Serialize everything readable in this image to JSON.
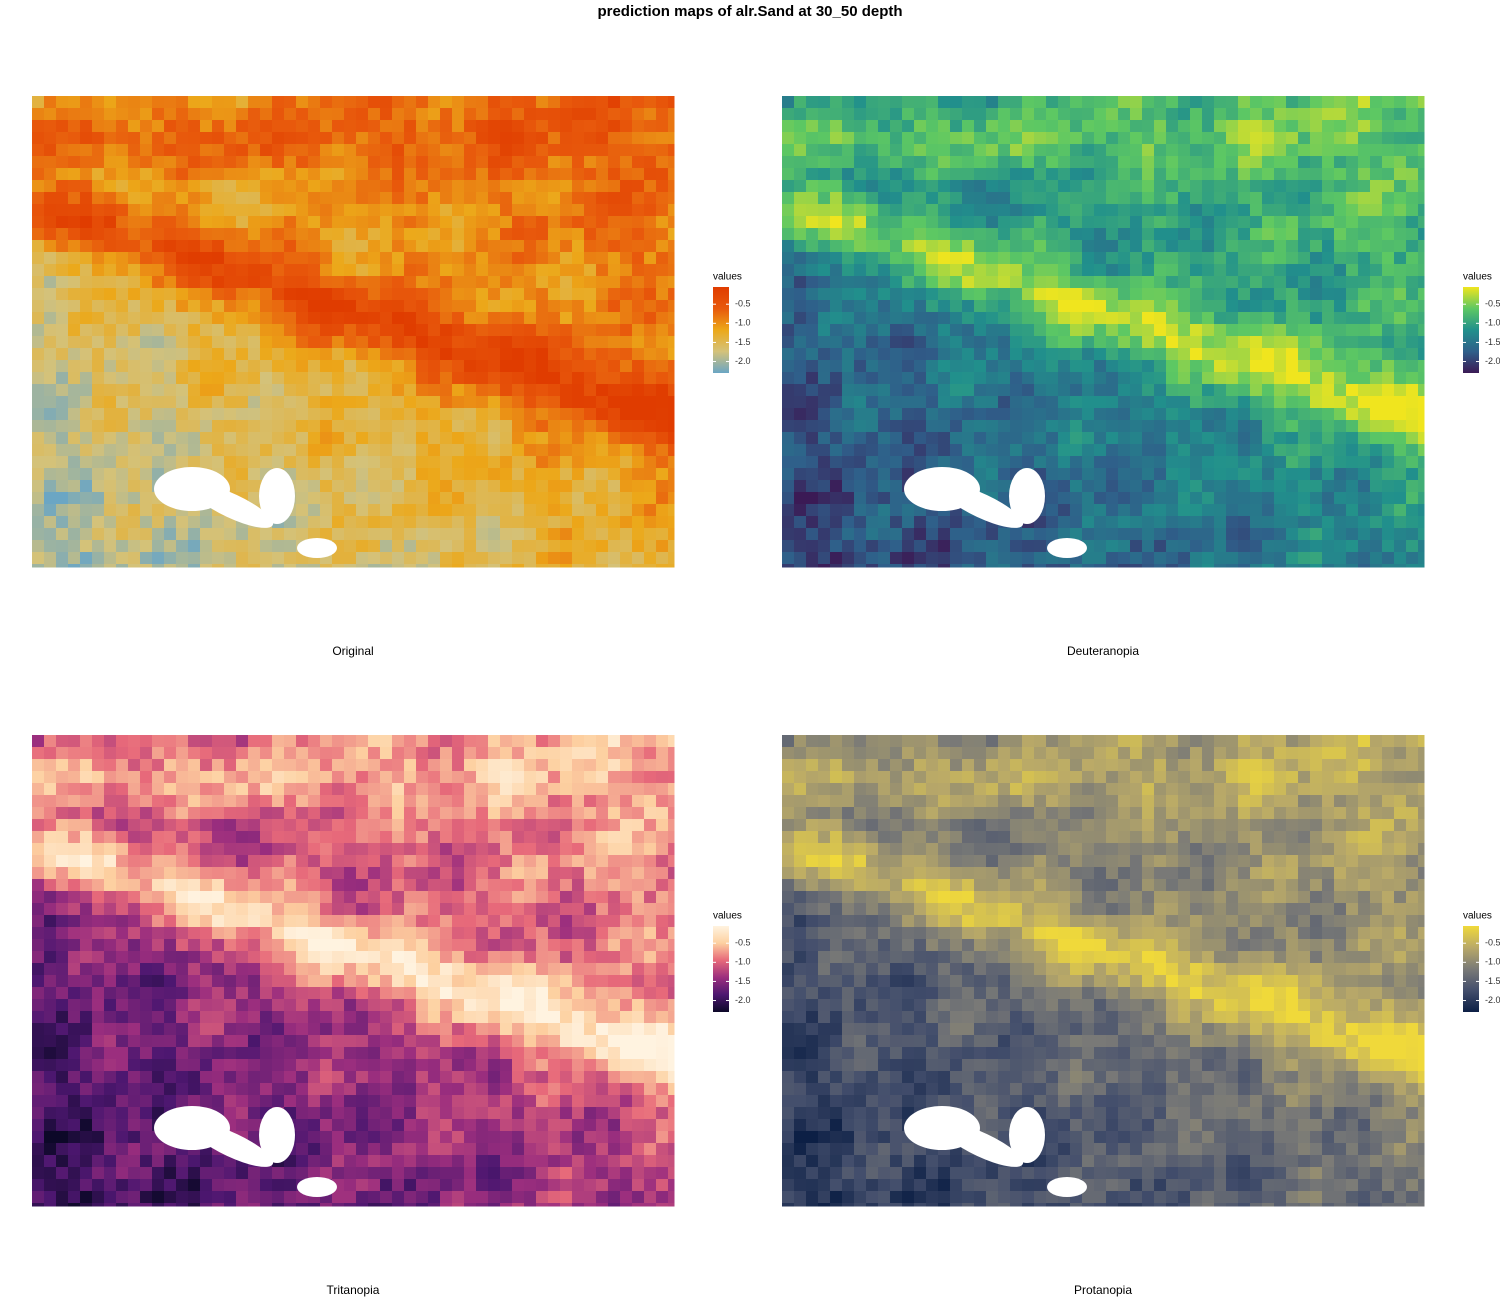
{
  "title": "prediction maps of alr.Sand at 30_50 depth",
  "chart_data": [
    {
      "type": "raster",
      "label": "Original",
      "legend_title": "values",
      "colorscale": [
        "#6ba6c4",
        "#d4c27a",
        "#eca819",
        "#e8590c",
        "#e03c00"
      ],
      "zlim": [
        -2.3,
        -0.05
      ],
      "zticks": [
        -0.5,
        {
          "value": -1,
          "label": "-1.0"
        },
        -1.5,
        {
          "value": -2,
          "label": "-2.0"
        }
      ]
    },
    {
      "type": "raster",
      "label": "Deuteranopia",
      "legend_title": "values",
      "colorscale": [
        "#3b1a55",
        "#2f5f8a",
        "#21908c",
        "#5dc863",
        "#f0e51e"
      ],
      "zlim": [
        -2.3,
        -0.05
      ],
      "zticks": [
        -0.5,
        {
          "value": -1,
          "label": "-1.0"
        },
        -1.5,
        {
          "value": -2,
          "label": "-2.0"
        }
      ]
    },
    {
      "type": "raster",
      "label": "Tritanopia",
      "legend_title": "values",
      "colorscale": [
        "#0c0828",
        "#4d1770",
        "#9b2e7e",
        "#e7697a",
        "#fdd0a0",
        "#fff3e0"
      ],
      "zlim": [
        -2.3,
        -0.05
      ],
      "zticks": [
        -0.5,
        {
          "value": -1,
          "label": "-1.0"
        },
        -1.5,
        {
          "value": -2,
          "label": "-2.0"
        }
      ]
    },
    {
      "type": "raster",
      "label": "Protanopia",
      "legend_title": "values",
      "colorscale": [
        "#0c1f45",
        "#434e6c",
        "#7a7a77",
        "#b9a968",
        "#f0d93a"
      ],
      "zlim": [
        -2.3,
        -0.05
      ],
      "zticks": [
        -0.5,
        {
          "value": -1,
          "label": "-1.0"
        },
        -1.5,
        {
          "value": -2,
          "label": "-2.0"
        }
      ]
    }
  ]
}
